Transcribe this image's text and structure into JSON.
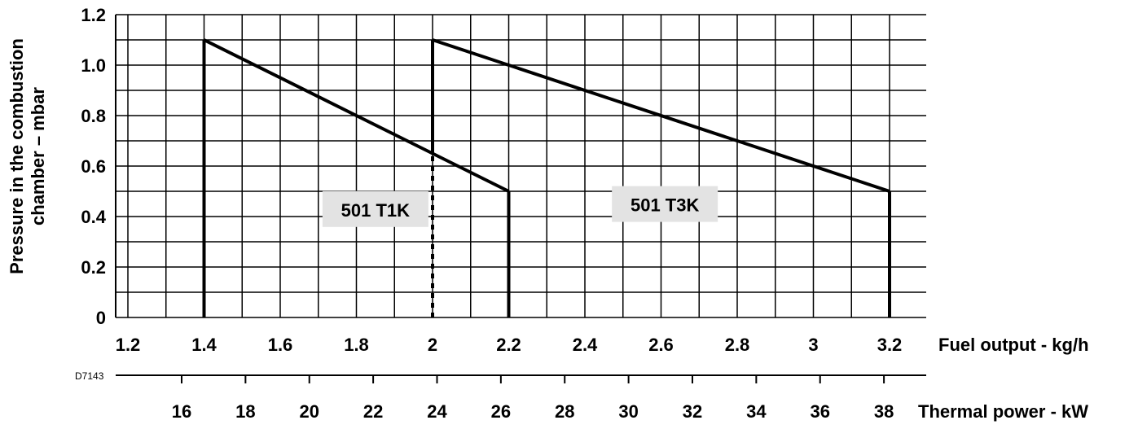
{
  "chart_data": {
    "type": "line",
    "code": "D7143",
    "ylabel": [
      "Pressure in the combustion",
      "chamber – mbar"
    ],
    "xlabel": "Fuel output - kg/h",
    "x2label": "Thermal power - kW",
    "xlim": [
      1.2,
      3.2
    ],
    "ylim": [
      0,
      1.2
    ],
    "x_ticks": [
      1.2,
      1.4,
      1.6,
      1.8,
      2.0,
      2.2,
      2.4,
      2.6,
      2.8,
      3.0,
      3.2
    ],
    "x_tick_labels": [
      "1.2",
      "1.4",
      "1.6",
      "1.8",
      "2",
      "2.2",
      "2.4",
      "2.6",
      "2.8",
      "3",
      "3.2"
    ],
    "y_ticks": [
      0,
      0.2,
      0.4,
      0.6,
      0.8,
      1.0,
      1.2
    ],
    "y_tick_labels": [
      "0",
      "0.2",
      "0.4",
      "0.6",
      "0.8",
      "1.0",
      "1.2"
    ],
    "x2_ticks": [
      16,
      18,
      20,
      22,
      24,
      26,
      28,
      30,
      32,
      34,
      36,
      38
    ],
    "x2_tick_labels": [
      "16",
      "18",
      "20",
      "22",
      "24",
      "26",
      "28",
      "30",
      "32",
      "34",
      "36",
      "38"
    ],
    "x2_per_x": 11.93,
    "grid": true,
    "series": [
      {
        "name": "501 T1K",
        "points": [
          [
            1.4,
            0
          ],
          [
            1.4,
            1.1
          ],
          [
            2.2,
            0.5
          ],
          [
            2.2,
            0
          ]
        ],
        "label_at": [
          1.85,
          0.42
        ]
      },
      {
        "name": "501 T3K",
        "points": [
          [
            2.0,
            0
          ],
          [
            2.0,
            1.1
          ],
          [
            3.2,
            0.5
          ],
          [
            3.2,
            0
          ]
        ],
        "label_at": [
          2.61,
          0.44
        ],
        "dashed_below": 0.65
      }
    ]
  }
}
